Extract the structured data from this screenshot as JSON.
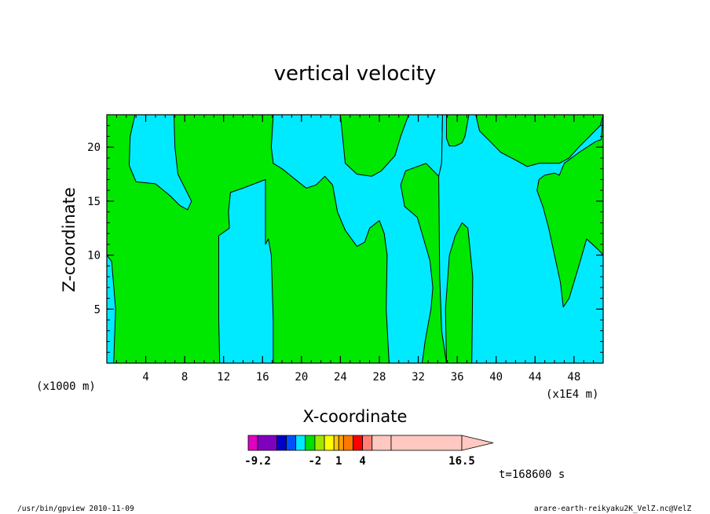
{
  "chart_data": {
    "type": "heatmap",
    "title": "vertical velocity",
    "xlabel": "X-coordinate",
    "ylabel": "Z-coordinate",
    "x_unit_left": "(x1000 m)",
    "x_unit_right": "(x1E4 m)",
    "xlim": [
      0,
      51
    ],
    "ylim": [
      0,
      23
    ],
    "x_ticks": [
      "4",
      "8",
      "12",
      "16",
      "20",
      "24",
      "28",
      "32",
      "36",
      "40",
      "44",
      "48"
    ],
    "y_ticks": [
      "5",
      "10",
      "15",
      "20"
    ],
    "x_tick_values": [
      4,
      8,
      12,
      16,
      20,
      24,
      28,
      32,
      36,
      40,
      44,
      48
    ],
    "y_tick_values": [
      5,
      10,
      15,
      20
    ],
    "time_label": "t=168600 s",
    "colorbar": {
      "labels": [
        "-9.2",
        "-2",
        "1",
        "4",
        "16.5"
      ],
      "label_values": [
        -9.2,
        -2,
        1,
        4,
        16.5
      ],
      "colors": [
        "#e000c0",
        "#8000c0",
        "#0000c8",
        "#0050ff",
        "#00e8ff",
        "#00e000",
        "#a0e800",
        "#ffff00",
        "#ffc800",
        "#ffa000",
        "#ff7800",
        "#ff0000",
        "#ff8078",
        "#ffc8c0"
      ]
    },
    "field_colors": {
      "negative": "#00eaff",
      "positive": "#00e800"
    },
    "regions": {
      "background_sign": "positive",
      "negative_areas": [
        {
          "id": "left-edge",
          "outline": [
            [
              0,
              10
            ],
            [
              0.5,
              9.4
            ],
            [
              0.9,
              5
            ],
            [
              0.7,
              0
            ],
            [
              0,
              0
            ]
          ]
        },
        {
          "id": "top-left",
          "outline": [
            [
              2.9,
              23
            ],
            [
              2.4,
              21
            ],
            [
              2.3,
              18.3
            ],
            [
              3,
              16.8
            ],
            [
              5,
              16.6
            ],
            [
              6.5,
              15.5
            ],
            [
              7.5,
              14.6
            ],
            [
              8.3,
              14.2
            ],
            [
              8.7,
              15
            ],
            [
              7.3,
              17.5
            ],
            [
              7,
              20
            ],
            [
              6.9,
              23
            ]
          ]
        },
        {
          "id": "column-13-16",
          "outline": [
            [
              11.6,
              0
            ],
            [
              11.5,
              4
            ],
            [
              11.5,
              11.8
            ],
            [
              12.6,
              12.5
            ],
            [
              12.5,
              14
            ],
            [
              12.7,
              15.8
            ],
            [
              14,
              16.2
            ],
            [
              16.3,
              17
            ],
            [
              16.3,
              13
            ],
            [
              16.3,
              11
            ],
            [
              16.6,
              11.5
            ],
            [
              16.9,
              10
            ],
            [
              17.1,
              4
            ],
            [
              17.1,
              0
            ]
          ]
        },
        {
          "id": "upper-middle",
          "outline": [
            [
              17.1,
              23
            ],
            [
              16.9,
              20
            ],
            [
              17.1,
              18.5
            ],
            [
              18,
              18
            ],
            [
              19.8,
              16.7
            ],
            [
              20.5,
              16.2
            ],
            [
              21.5,
              16.5
            ],
            [
              22.4,
              17.3
            ],
            [
              23.2,
              16.5
            ],
            [
              23.7,
              14
            ],
            [
              24.5,
              12.3
            ],
            [
              25.7,
              10.8
            ],
            [
              26.5,
              11.2
            ],
            [
              27,
              12.5
            ],
            [
              28,
              13.2
            ],
            [
              28.5,
              12
            ],
            [
              28.8,
              10
            ],
            [
              28.7,
              5
            ],
            [
              29,
              0
            ],
            [
              32.4,
              0
            ],
            [
              32.7,
              2
            ],
            [
              33.3,
              5
            ],
            [
              33.5,
              7
            ],
            [
              33.2,
              9.5
            ],
            [
              31.9,
              13.5
            ],
            [
              30.6,
              14.5
            ],
            [
              30.2,
              16.5
            ],
            [
              30.7,
              17.8
            ],
            [
              32.8,
              18.5
            ],
            [
              34.1,
              17.3
            ],
            [
              34.4,
              18.5
            ],
            [
              34.5,
              23
            ],
            [
              31,
              23
            ],
            [
              30.2,
              21
            ],
            [
              29.6,
              19.2
            ],
            [
              28.2,
              17.8
            ],
            [
              27.2,
              17.3
            ],
            [
              25.7,
              17.5
            ],
            [
              24.5,
              18.5
            ],
            [
              24,
              23
            ]
          ]
        },
        {
          "id": "right-main",
          "outline": [
            [
              34.9,
              0
            ],
            [
              34.8,
              5
            ],
            [
              35.2,
              10
            ],
            [
              35.8,
              11.8
            ],
            [
              36.5,
              13
            ],
            [
              37.1,
              12.5
            ],
            [
              37.6,
              8
            ],
            [
              37.5,
              0
            ],
            [
              51,
              0
            ],
            [
              51,
              10
            ],
            [
              50.5,
              10.5
            ],
            [
              49.3,
              11.5
            ],
            [
              48.5,
              9
            ],
            [
              47.5,
              6
            ],
            [
              46.9,
              5.2
            ],
            [
              46.6,
              7.5
            ],
            [
              46,
              10
            ],
            [
              45.4,
              12.5
            ],
            [
              44.8,
              14.5
            ],
            [
              44.2,
              16
            ],
            [
              44.4,
              17
            ],
            [
              45,
              17.4
            ],
            [
              46,
              17.6
            ],
            [
              46.5,
              17.4
            ],
            [
              47,
              18.5
            ],
            [
              48.5,
              19.5
            ],
            [
              50.2,
              20.5
            ],
            [
              50.8,
              20.7
            ],
            [
              51,
              23
            ],
            [
              50.7,
              22
            ],
            [
              49.6,
              21
            ],
            [
              48.5,
              20
            ],
            [
              47.5,
              19
            ],
            [
              46.5,
              18.5
            ],
            [
              44.4,
              18.5
            ],
            [
              43.2,
              18.2
            ],
            [
              42,
              18.8
            ],
            [
              40.5,
              19.5
            ],
            [
              39.4,
              20.5
            ],
            [
              38.3,
              21.5
            ],
            [
              37.9,
              23
            ],
            [
              37.2,
              23
            ],
            [
              36.8,
              21
            ],
            [
              36.5,
              20.4
            ],
            [
              35.8,
              20.1
            ],
            [
              35.2,
              20.1
            ],
            [
              34.9,
              20.8
            ],
            [
              34.9,
              23
            ],
            [
              34.5,
              23
            ],
            [
              34.4,
              18.5
            ],
            [
              34.1,
              17.3
            ],
            [
              34.2,
              8
            ],
            [
              34.4,
              3
            ],
            [
              34.9,
              0
            ]
          ]
        }
      ]
    }
  },
  "footer": {
    "left": "/usr/bin/gpview   2010-11-09",
    "right": "arare-earth-reikyaku2K_VelZ.nc@VelZ"
  }
}
